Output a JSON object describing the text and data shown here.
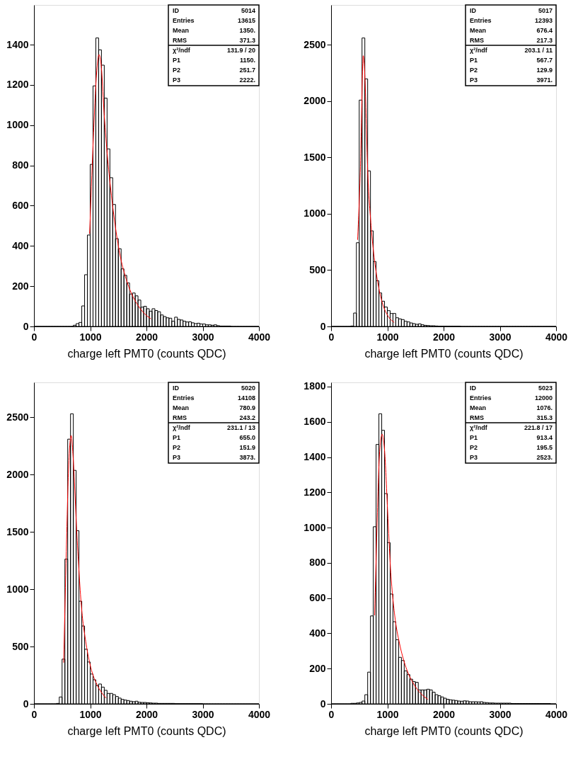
{
  "chart_data": [
    {
      "type": "histogram",
      "xlabel": "charge left PMT0 (counts QDC)",
      "xlim": [
        0,
        4000
      ],
      "xticks": [
        0,
        1000,
        2000,
        3000,
        4000
      ],
      "ylim": [
        0,
        1597
      ],
      "yticks": [
        0,
        200,
        400,
        600,
        800,
        1000,
        1200,
        1400
      ],
      "grid": false,
      "annotations": [
        "ID",
        "5014",
        "Entries",
        "13615",
        "Mean",
        "1350.",
        "RMS",
        "371.3",
        "χ²/ndf",
        "131.9  /  20",
        "P1",
        "1150.",
        "P2",
        "251.7",
        "P3",
        "2222."
      ],
      "bins": [
        0,
        50,
        100,
        150,
        200,
        250,
        300,
        350,
        400,
        450,
        500,
        550,
        600,
        650,
        700,
        750,
        800,
        850,
        900,
        950,
        1000,
        1050,
        1100,
        1150,
        1200,
        1250,
        1300,
        1350,
        1400,
        1450,
        1500,
        1550,
        1600,
        1650,
        1700,
        1750,
        1800,
        1850,
        1900,
        1950,
        2000,
        2050,
        2100,
        2150,
        2200,
        2250,
        2300,
        2350,
        2400,
        2450,
        2500,
        2550,
        2600,
        2650,
        2700,
        2750,
        2800,
        2850,
        2900,
        2950,
        3000,
        3050,
        3100,
        3150,
        3200,
        3250,
        3300,
        3350,
        3400,
        3450,
        3500,
        3550,
        3600,
        3650,
        3700,
        3750,
        3800,
        3850,
        3900,
        3950,
        4000
      ],
      "series": [
        {
          "color": "#000000",
          "values": [
            0,
            0,
            0,
            0,
            0,
            0,
            0,
            0,
            0,
            0,
            0,
            0,
            0,
            0,
            6,
            14,
            20,
            102,
            257,
            454,
            805,
            1195,
            1433,
            1374,
            1298,
            1134,
            882,
            739,
            606,
            436,
            386,
            286,
            254,
            216,
            161,
            166,
            152,
            131,
            96,
            100,
            88,
            76,
            88,
            79,
            73,
            57,
            49,
            43,
            41,
            26,
            46,
            35,
            32,
            26,
            22,
            23,
            18,
            14,
            16,
            12,
            12,
            8,
            8,
            6,
            8,
            4,
            2,
            2,
            2,
            2,
            0,
            0,
            0,
            0,
            0,
            0,
            0,
            0,
            0,
            0
          ]
        },
        {
          "type": "line",
          "color": "#ff0000",
          "x": [
            990,
            1052,
            1115,
            1157,
            1199,
            1241,
            1304,
            1367,
            1451,
            1535,
            1619,
            1703,
            1828,
            1954,
            2080
          ],
          "values": [
            460,
            911,
            1263,
            1350,
            1286,
            1087,
            852,
            676,
            489,
            348,
            254,
            184,
            114,
            67,
            38
          ]
        }
      ]
    },
    {
      "type": "histogram",
      "xlabel": "charge left PMT0 (counts QDC)",
      "xlim": [
        0,
        4000
      ],
      "xticks": [
        0,
        1000,
        2000,
        3000,
        4000
      ],
      "ylim": [
        0,
        2852
      ],
      "yticks": [
        0,
        500,
        1000,
        1500,
        2000,
        2500
      ],
      "grid": false,
      "annotations": [
        "ID",
        "5017",
        "Entries",
        "12393",
        "Mean",
        "676.4",
        "RMS",
        "217.3",
        "χ²/ndf",
        "203.1  /  11",
        "P1",
        "567.7",
        "P2",
        "129.9",
        "P3",
        "3971."
      ],
      "bins": [
        0,
        50,
        100,
        150,
        200,
        250,
        300,
        350,
        400,
        450,
        500,
        550,
        600,
        650,
        700,
        750,
        800,
        850,
        900,
        950,
        1000,
        1050,
        1100,
        1150,
        1200,
        1250,
        1300,
        1350,
        1400,
        1450,
        1500,
        1550,
        1600,
        1650,
        1700,
        1750,
        1800,
        1850,
        1900,
        1950,
        2000,
        2050,
        2100,
        2150,
        2200,
        2250,
        2300,
        2350,
        2400,
        2450,
        2500,
        2550,
        2600,
        2650,
        2700,
        2750,
        2800,
        2850,
        2900,
        2950,
        3000,
        3050,
        3100,
        3150,
        3200,
        3250,
        3300,
        3350,
        3400,
        3450,
        3500,
        3550,
        3600,
        3650,
        3700,
        3750,
        3800,
        3850,
        3900,
        3950,
        4000
      ],
      "series": [
        {
          "color": "#000000",
          "values": [
            0,
            0,
            0,
            0,
            0,
            0,
            0,
            4,
            119,
            743,
            2008,
            2559,
            2196,
            1380,
            848,
            576,
            406,
            297,
            224,
            172,
            140,
            115,
            115,
            77,
            67,
            61,
            46,
            40,
            31,
            25,
            19,
            23,
            15,
            10,
            8,
            6,
            6,
            4,
            2,
            2,
            2,
            2,
            2,
            2,
            2,
            2,
            0,
            0,
            0,
            0,
            0,
            0,
            0,
            0,
            0,
            0,
            0,
            0,
            0,
            0,
            0,
            0,
            0,
            0,
            0,
            0,
            0,
            0,
            0,
            0,
            0,
            0,
            0,
            0,
            0,
            0,
            0,
            0,
            0,
            0
          ]
        },
        {
          "type": "line",
          "color": "#ff0000",
          "x": [
            471,
            522,
            572,
            606,
            648,
            711,
            774,
            837,
            921,
            1005,
            1123
          ],
          "values": [
            768,
            1417,
            2402,
            2150,
            1417,
            894,
            580,
            371,
            193,
            98,
            36
          ]
        }
      ]
    },
    {
      "type": "histogram",
      "xlabel": "charge left PMT0 (counts QDC)",
      "xlim": [
        0,
        4000
      ],
      "xticks": [
        0,
        1000,
        2000,
        3000,
        4000
      ],
      "ylim": [
        0,
        2803
      ],
      "yticks": [
        0,
        500,
        1000,
        1500,
        2000,
        2500
      ],
      "grid": false,
      "annotations": [
        "ID",
        "5020",
        "Entries",
        "14108",
        "Mean",
        "780.9",
        "RMS",
        "243.2",
        "χ²/ndf",
        "231.1  /  13",
        "P1",
        "655.0",
        "P2",
        "151.9",
        "P3",
        "3873."
      ],
      "bins": [
        0,
        50,
        100,
        150,
        200,
        250,
        300,
        350,
        400,
        450,
        500,
        550,
        600,
        650,
        700,
        750,
        800,
        850,
        900,
        950,
        1000,
        1050,
        1100,
        1150,
        1200,
        1250,
        1300,
        1350,
        1400,
        1450,
        1500,
        1550,
        1600,
        1650,
        1700,
        1750,
        1800,
        1850,
        1900,
        1950,
        2000,
        2050,
        2100,
        2150,
        2200,
        2250,
        2300,
        2350,
        2400,
        2450,
        2500,
        2550,
        2600,
        2650,
        2700,
        2750,
        2800,
        2850,
        2900,
        2950,
        3000,
        3050,
        3100,
        3150,
        3200,
        3250,
        3300,
        3350,
        3400,
        3450,
        3500,
        3550,
        3600,
        3650,
        3700,
        3750,
        3800,
        3850,
        3900,
        3950,
        4000
      ],
      "series": [
        {
          "color": "#000000",
          "values": [
            0,
            0,
            0,
            0,
            0,
            0,
            0,
            0,
            4,
            60,
            390,
            1262,
            2308,
            2529,
            2036,
            1510,
            895,
            679,
            476,
            365,
            260,
            210,
            159,
            173,
            146,
            118,
            91,
            91,
            80,
            64,
            50,
            39,
            33,
            29,
            23,
            19,
            23,
            14,
            12,
            12,
            10,
            8,
            6,
            6,
            4,
            4,
            4,
            4,
            4,
            4,
            2,
            2,
            2,
            2,
            2,
            2,
            2,
            2,
            2,
            2,
            0,
            0,
            0,
            0,
            0,
            0,
            0,
            0,
            0,
            0,
            0,
            0,
            0,
            0,
            0,
            0,
            0,
            0,
            0,
            0
          ]
        },
        {
          "type": "line",
          "color": "#ff0000",
          "x": [
            528,
            570,
            612,
            662,
            696,
            759,
            843,
            927,
            1010,
            1115,
            1199,
            1283
          ],
          "values": [
            359,
            1225,
            2009,
            2339,
            2153,
            1520,
            854,
            524,
            318,
            173,
            101,
            50
          ]
        }
      ]
    },
    {
      "type": "histogram",
      "xlabel": "charge left PMT0 (counts QDC)",
      "xlim": [
        0,
        4000
      ],
      "xticks": [
        0,
        1000,
        2000,
        3000,
        4000
      ],
      "ylim": [
        0,
        1824
      ],
      "yticks": [
        0,
        200,
        400,
        600,
        800,
        1000,
        1200,
        1400,
        1600,
        1800
      ],
      "grid": false,
      "annotations": [
        "ID",
        "5023",
        "Entries",
        "12000",
        "Mean",
        "1076.",
        "RMS",
        "315.3",
        "χ²/ndf",
        "221.8  /  17",
        "P1",
        "913.4",
        "P2",
        "195.5",
        "P3",
        "2523."
      ],
      "bins": [
        0,
        50,
        100,
        150,
        200,
        250,
        300,
        350,
        400,
        450,
        500,
        550,
        600,
        650,
        700,
        750,
        800,
        850,
        900,
        950,
        1000,
        1050,
        1100,
        1150,
        1200,
        1250,
        1300,
        1350,
        1400,
        1450,
        1500,
        1550,
        1600,
        1650,
        1700,
        1750,
        1800,
        1850,
        1900,
        1950,
        2000,
        2050,
        2100,
        2150,
        2200,
        2250,
        2300,
        2350,
        2400,
        2450,
        2500,
        2550,
        2600,
        2650,
        2700,
        2750,
        2800,
        2850,
        2900,
        2950,
        3000,
        3050,
        3100,
        3150,
        3200,
        3250,
        3300,
        3350,
        3400,
        3450,
        3500,
        3550,
        3600,
        3650,
        3700,
        3750,
        3800,
        3850,
        3900,
        3950,
        4000
      ],
      "series": [
        {
          "color": "#000000",
          "values": [
            0,
            0,
            0,
            0,
            0,
            0,
            0,
            3,
            3,
            5,
            8,
            16,
            52,
            180,
            499,
            1005,
            1472,
            1646,
            1552,
            1193,
            915,
            623,
            466,
            364,
            264,
            246,
            187,
            166,
            140,
            126,
            122,
            79,
            79,
            79,
            83,
            79,
            66,
            52,
            46,
            39,
            32,
            26,
            23,
            21,
            19,
            16,
            15,
            17,
            16,
            12,
            12,
            12,
            11,
            12,
            8,
            7,
            5,
            5,
            4,
            4,
            4,
            4,
            4,
            4,
            2,
            2,
            2,
            2,
            2,
            2,
            2,
            2,
            2,
            2,
            2,
            2,
            2,
            2,
            0,
            0
          ]
        },
        {
          "type": "line",
          "color": "#ff0000",
          "x": [
            774,
            816,
            858,
            908,
            955,
            1005,
            1056,
            1131,
            1215,
            1300,
            1363,
            1468,
            1594,
            1720
          ],
          "values": [
            502,
            999,
            1402,
            1530,
            1419,
            1093,
            770,
            502,
            345,
            238,
            180,
            113,
            59,
            26
          ]
        }
      ]
    }
  ]
}
